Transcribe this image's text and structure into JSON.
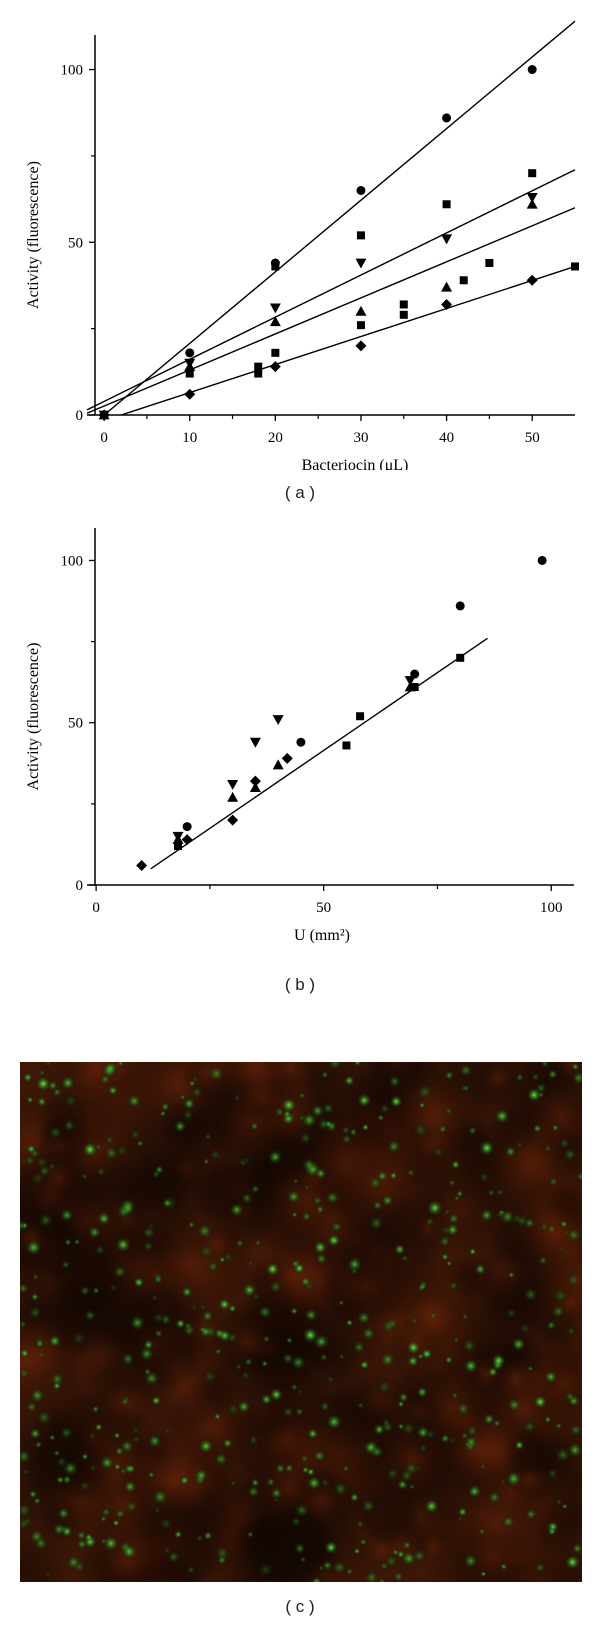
{
  "panels": {
    "a": {
      "label": "( a )"
    },
    "b": {
      "label": "( b )"
    },
    "c": {
      "label": "( c )"
    }
  },
  "chart_data": [
    {
      "id": "a",
      "type": "scatter",
      "title": "",
      "xlabel": "Bacteriocin (μL)",
      "ylabel": "Activity (fluorescence)",
      "xlim": [
        -2,
        55
      ],
      "ylim": [
        0,
        110
      ],
      "xticks": [
        0,
        10,
        20,
        30,
        40,
        50
      ],
      "yticks": [
        0,
        50,
        100
      ],
      "grid": false,
      "legend": "none",
      "series": [
        {
          "name": "circle",
          "marker": "circle",
          "x": [
            0,
            10,
            20,
            30,
            40,
            50
          ],
          "y": [
            0,
            18,
            44,
            65,
            86,
            100
          ]
        },
        {
          "name": "square",
          "marker": "square",
          "x": [
            0,
            10,
            18,
            18,
            20,
            20,
            30,
            30,
            35,
            35,
            40,
            42,
            45,
            50,
            55
          ],
          "y": [
            0,
            12,
            12,
            14,
            18,
            43,
            26,
            52,
            29,
            32,
            61,
            39,
            44,
            70,
            43
          ]
        },
        {
          "name": "triangle-down",
          "marker": "triangle-down",
          "x": [
            0,
            10,
            20,
            30,
            40,
            50
          ],
          "y": [
            0,
            15,
            31,
            44,
            51,
            63
          ]
        },
        {
          "name": "triangle-up",
          "marker": "triangle-up",
          "x": [
            0,
            10,
            20,
            30,
            40,
            50
          ],
          "y": [
            0,
            14,
            27,
            30,
            37,
            61
          ]
        },
        {
          "name": "diamond",
          "marker": "diamond",
          "x": [
            0,
            10,
            20,
            30,
            40,
            50
          ],
          "y": [
            0,
            6,
            14,
            20,
            32,
            39
          ]
        }
      ],
      "fit_lines": [
        {
          "x": [
            0,
            55
          ],
          "y": [
            0,
            114
          ]
        },
        {
          "x": [
            -2,
            55
          ],
          "y": [
            1.5,
            71
          ]
        },
        {
          "x": [
            -2,
            55
          ],
          "y": [
            0.5,
            60
          ]
        },
        {
          "x": [
            2,
            55
          ],
          "y": [
            0,
            43
          ]
        }
      ]
    },
    {
      "id": "b",
      "type": "scatter",
      "title": "",
      "xlabel": "U (mm²)",
      "ylabel": "Activity (fluorescence)",
      "xlim": [
        -2,
        105
      ],
      "ylim": [
        0,
        110
      ],
      "xticks": [
        0,
        50,
        100
      ],
      "yticks": [
        0,
        50,
        100
      ],
      "grid": false,
      "legend": "none",
      "series": [
        {
          "name": "circle",
          "marker": "circle",
          "x": [
            20,
            45,
            70,
            80,
            98
          ],
          "y": [
            18,
            44,
            65,
            86,
            100
          ]
        },
        {
          "name": "square",
          "marker": "square",
          "x": [
            18,
            55,
            58,
            70,
            80
          ],
          "y": [
            12,
            43,
            52,
            61,
            70
          ]
        },
        {
          "name": "triangle-down",
          "marker": "triangle-down",
          "x": [
            18,
            30,
            35,
            40,
            69
          ],
          "y": [
            15,
            31,
            44,
            51,
            63
          ]
        },
        {
          "name": "triangle-up",
          "marker": "triangle-up",
          "x": [
            18,
            30,
            35,
            40,
            69
          ],
          "y": [
            14,
            27,
            30,
            37,
            61
          ]
        },
        {
          "name": "diamond",
          "marker": "diamond",
          "x": [
            10,
            20,
            30,
            35,
            42
          ],
          "y": [
            6,
            14,
            20,
            32,
            39
          ]
        }
      ],
      "fit_lines": [
        {
          "x": [
            12,
            86
          ],
          "y": [
            5,
            76
          ]
        }
      ]
    }
  ],
  "image_c": {
    "description": "fluorescence micrograph, green spots on red-brown background"
  }
}
